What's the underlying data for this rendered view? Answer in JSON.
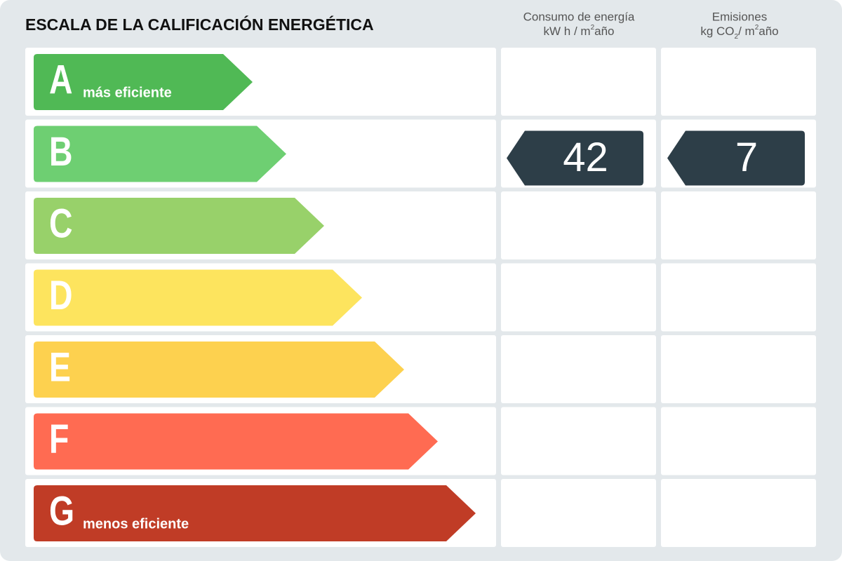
{
  "title": "ESCALA DE LA CALIFICACIÓN ENERGÉTICA",
  "headers": {
    "consumption": {
      "line1": "Consumo de energía",
      "unit": "kW h / m",
      "sup": "2",
      "suffix": "año"
    },
    "emissions": {
      "line1": "Emisiones",
      "unit": "kg CO",
      "sub": "2",
      "unit2": "/ m",
      "sup": "2",
      "suffix": "año"
    }
  },
  "rows": [
    {
      "letter": "A",
      "label": "más eficiente",
      "color": "#50b955"
    },
    {
      "letter": "B",
      "color": "#6ecf72",
      "consumption": 42,
      "emissions": 7
    },
    {
      "letter": "C",
      "color": "#98d16a"
    },
    {
      "letter": "D",
      "color": "#fde45e"
    },
    {
      "letter": "E",
      "color": "#fdd14f"
    },
    {
      "letter": "F",
      "color": "#ff6b52"
    },
    {
      "letter": "G",
      "label": "menos eficiente",
      "color": "#c03c26"
    }
  ],
  "indicator_color": "#2d3e48"
}
